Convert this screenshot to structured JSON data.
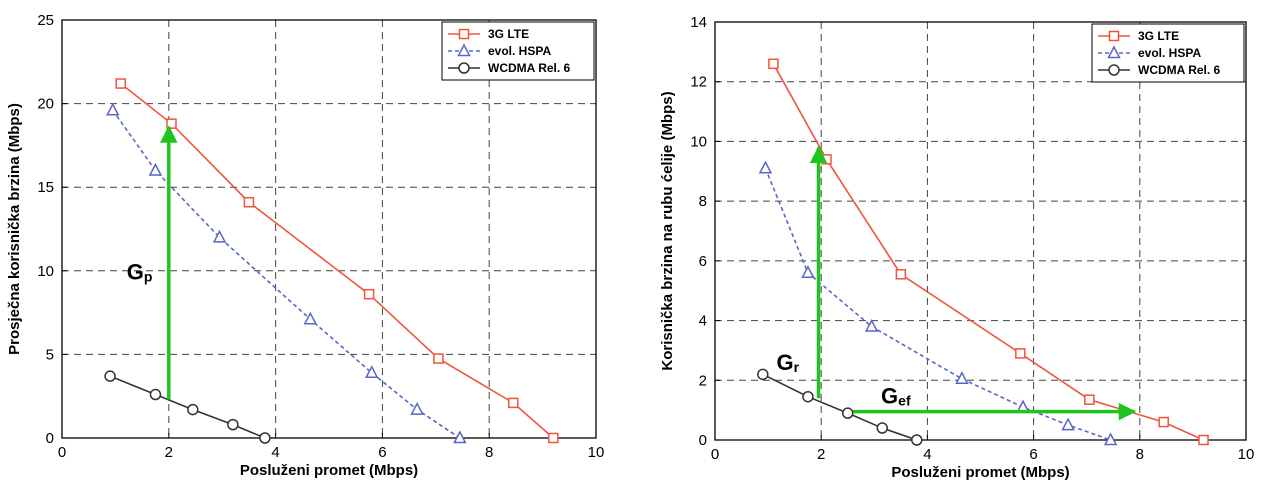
{
  "colors": {
    "lte": "#f0553c",
    "hspa": "#5866c8",
    "wcdma": "#333333",
    "arrow": "#1fc41f",
    "grid": "#444444"
  },
  "chart_data": [
    {
      "type": "line",
      "xlabel": "Posluženi promet (Mbps)",
      "ylabel": "Prosječna korisnička brzina (Mbps)",
      "xlim": [
        0,
        10
      ],
      "ylim": [
        0,
        25
      ],
      "xticks": [
        0,
        2,
        4,
        6,
        8,
        10
      ],
      "yticks": [
        0,
        5,
        10,
        15,
        20,
        25
      ],
      "grid": true,
      "legend_position": "top-right",
      "series": [
        {
          "name": "3G LTE",
          "marker": "square",
          "style": "solid",
          "x": [
            1.1,
            2.05,
            3.5,
            5.75,
            7.05,
            8.45,
            9.2
          ],
          "y": [
            21.2,
            18.8,
            14.1,
            8.6,
            4.75,
            2.1,
            0
          ]
        },
        {
          "name": "evol. HSPA",
          "marker": "triangle",
          "style": "dashed",
          "x": [
            0.95,
            1.75,
            2.95,
            4.65,
            5.8,
            6.65,
            7.45
          ],
          "y": [
            19.6,
            16.0,
            12.0,
            7.1,
            3.9,
            1.7,
            0
          ]
        },
        {
          "name": "WCDMA Rel. 6",
          "marker": "circle",
          "style": "solid",
          "x": [
            0.9,
            1.75,
            2.45,
            3.2,
            3.8
          ],
          "y": [
            3.7,
            2.6,
            1.7,
            0.8,
            0
          ]
        }
      ],
      "annotations": [
        {
          "label": "G",
          "sub": "p",
          "from": [
            2.0,
            2.3
          ],
          "to": [
            2.0,
            18.6
          ]
        }
      ]
    },
    {
      "type": "line",
      "xlabel": "Posluženi promet (Mbps)",
      "ylabel": "Korisnička brzina na rubu ćelije (Mbps)",
      "xlim": [
        0,
        10
      ],
      "ylim": [
        0,
        14
      ],
      "xticks": [
        0,
        2,
        4,
        6,
        8,
        10
      ],
      "yticks": [
        0,
        2,
        4,
        6,
        8,
        10,
        12,
        14
      ],
      "grid": true,
      "legend_position": "top-right",
      "series": [
        {
          "name": "3G LTE",
          "marker": "square",
          "style": "solid",
          "x": [
            1.1,
            2.1,
            3.5,
            5.75,
            7.05,
            8.45,
            9.2
          ],
          "y": [
            12.6,
            9.4,
            5.55,
            2.9,
            1.35,
            0.6,
            0
          ]
        },
        {
          "name": "evol. HSPA",
          "marker": "triangle",
          "style": "dashed",
          "x": [
            0.95,
            1.75,
            2.95,
            4.65,
            5.8,
            6.65,
            7.45
          ],
          "y": [
            9.1,
            5.6,
            3.8,
            2.05,
            1.1,
            0.5,
            0
          ]
        },
        {
          "name": "WCDMA Rel. 6",
          "marker": "circle",
          "style": "solid",
          "x": [
            0.9,
            1.75,
            2.5,
            3.15,
            3.8
          ],
          "y": [
            2.2,
            1.45,
            0.9,
            0.4,
            0
          ]
        }
      ],
      "annotations": [
        {
          "label": "G",
          "sub": "r",
          "from": [
            1.95,
            1.4
          ],
          "to": [
            1.95,
            9.8
          ]
        },
        {
          "label": "G",
          "sub": "ef",
          "from": [
            2.6,
            0.95
          ],
          "to": [
            7.9,
            0.95
          ]
        }
      ]
    }
  ]
}
